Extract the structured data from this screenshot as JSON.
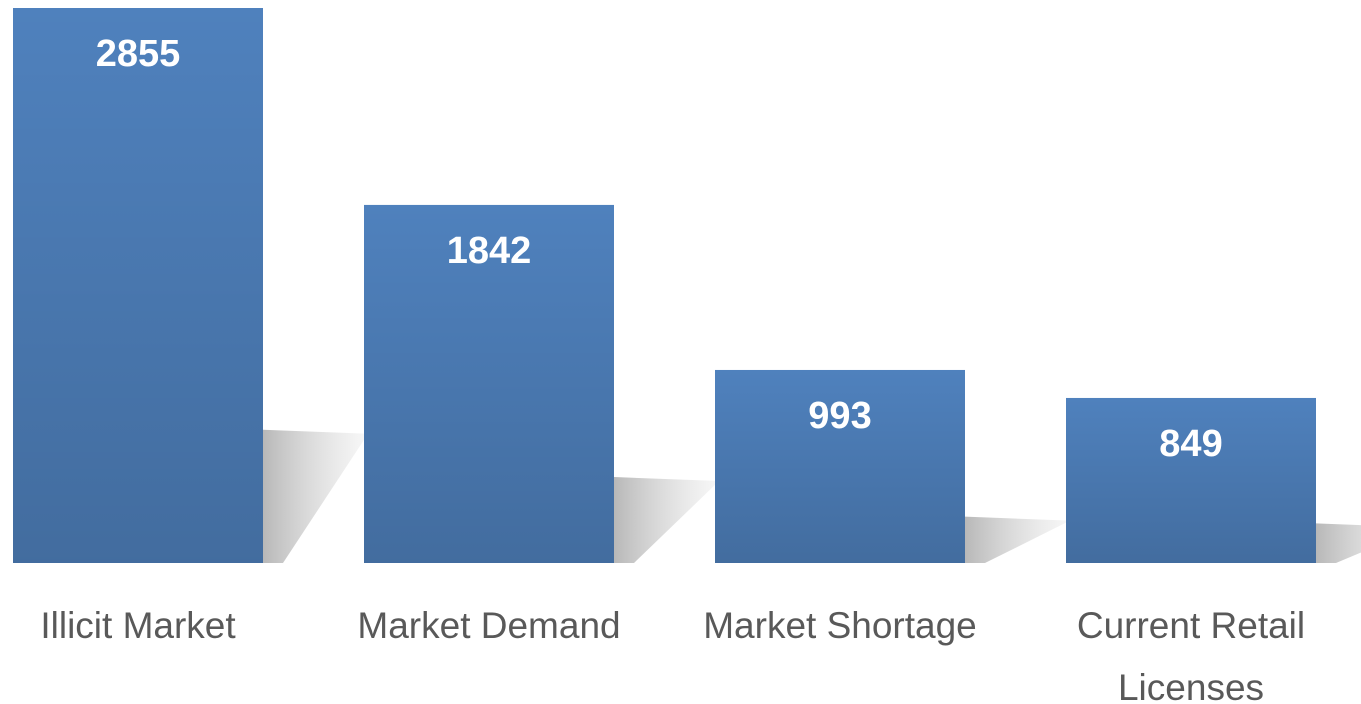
{
  "chart_data": {
    "type": "bar",
    "categories": [
      "Illicit Market",
      "Market Demand",
      "Market Shortage",
      "Current Retail Licenses"
    ],
    "values": [
      2855,
      1842,
      993,
      849
    ],
    "color": "#4f81bd"
  }
}
